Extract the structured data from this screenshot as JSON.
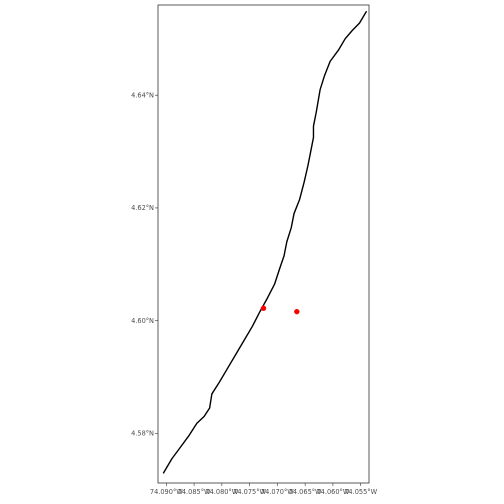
{
  "chart_data": {
    "type": "map",
    "title": "",
    "xlabel": "",
    "ylabel": "",
    "xlim": [
      -74.0915,
      -74.0535
    ],
    "ylim": [
      4.5712,
      4.656
    ],
    "grid": false,
    "x_ticks": [
      {
        "value": -74.09,
        "label": "74.090°W"
      },
      {
        "value": -74.085,
        "label": "74.085°W"
      },
      {
        "value": -74.08,
        "label": "74.080°W"
      },
      {
        "value": -74.075,
        "label": "74.075°W"
      },
      {
        "value": -74.07,
        "label": "74.070°W"
      },
      {
        "value": -74.065,
        "label": "74.065°W"
      },
      {
        "value": -74.06,
        "label": "74.060°W"
      },
      {
        "value": -74.055,
        "label": "74.055°W"
      }
    ],
    "y_ticks": [
      {
        "value": 4.58,
        "label": "4.58°N"
      },
      {
        "value": 4.6,
        "label": "4.60°N"
      },
      {
        "value": 4.62,
        "label": "4.62°N"
      },
      {
        "value": 4.64,
        "label": "4.64°N"
      }
    ],
    "line_color": "#000000",
    "line": [
      [
        -74.0905,
        4.573
      ],
      [
        -74.089,
        4.5755
      ],
      [
        -74.0875,
        4.5775
      ],
      [
        -74.086,
        4.5795
      ],
      [
        -74.0845,
        4.5818
      ],
      [
        -74.0832,
        4.583
      ],
      [
        -74.0822,
        4.5845
      ],
      [
        -74.0818,
        4.587
      ],
      [
        -74.0805,
        4.589
      ],
      [
        -74.079,
        4.5915
      ],
      [
        -74.0775,
        4.594
      ],
      [
        -74.076,
        4.5965
      ],
      [
        -74.0745,
        4.599
      ],
      [
        -74.0732,
        4.6015
      ],
      [
        -74.0718,
        4.604
      ],
      [
        -74.0705,
        4.6065
      ],
      [
        -74.0695,
        4.6095
      ],
      [
        -74.0688,
        4.6115
      ],
      [
        -74.0683,
        4.614
      ],
      [
        -74.0675,
        4.6165
      ],
      [
        -74.067,
        4.619
      ],
      [
        -74.066,
        4.6215
      ],
      [
        -74.0652,
        4.6245
      ],
      [
        -74.0645,
        4.6275
      ],
      [
        -74.064,
        4.63
      ],
      [
        -74.0635,
        4.6325
      ],
      [
        -74.0635,
        4.6345
      ],
      [
        -74.063,
        4.637
      ],
      [
        -74.0623,
        4.641
      ],
      [
        -74.0615,
        4.6435
      ],
      [
        -74.0605,
        4.646
      ],
      [
        -74.059,
        4.648
      ],
      [
        -74.0578,
        4.65
      ],
      [
        -74.0565,
        4.6515
      ],
      [
        -74.0552,
        4.6528
      ],
      [
        -74.054,
        4.6548
      ]
    ],
    "points_color": "#ff0000",
    "points": [
      [
        -74.0725,
        4.6022
      ],
      [
        -74.0665,
        4.6016
      ]
    ]
  }
}
